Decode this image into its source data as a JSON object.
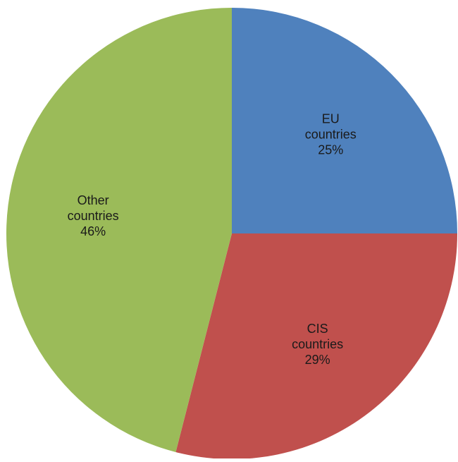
{
  "chart_data": {
    "type": "pie",
    "slices": [
      {
        "label": "EU\ncountries",
        "value": 25,
        "display": "25%",
        "color": "#4F81BD"
      },
      {
        "label": "CIS\ncountries",
        "value": 29,
        "display": "29%",
        "color": "#C0504D"
      },
      {
        "label": "Other\ncountries",
        "value": 46,
        "display": "46%",
        "color": "#9BBB59"
      }
    ],
    "start_angle_deg": 0,
    "direction": "clockwise",
    "legend": "none",
    "data_labels": "inside"
  }
}
